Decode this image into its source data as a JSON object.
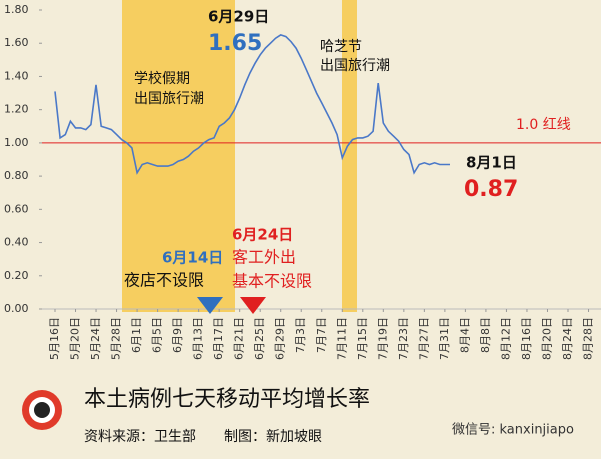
{
  "chart_data": {
    "type": "line",
    "title": "本土病例七天移动平均增长率",
    "source": "资料来源：卫生部",
    "credit": "制图：新加坡眼",
    "wechat": "微信号: kanxinjiapo",
    "x": [
      "5月16日",
      "5月17日",
      "5月18日",
      "5月19日",
      "5月20日",
      "5月21日",
      "5月22日",
      "5月23日",
      "5月24日",
      "5月25日",
      "5月26日",
      "5月27日",
      "5月28日",
      "5月29日",
      "5月30日",
      "5月31日",
      "6月1日",
      "6月2日",
      "6月3日",
      "6月4日",
      "6月5日",
      "6月6日",
      "6月7日",
      "6月8日",
      "6月9日",
      "6月10日",
      "6月11日",
      "6月12日",
      "6月13日",
      "6月14日",
      "6月15日",
      "6月16日",
      "6月17日",
      "6月18日",
      "6月19日",
      "6月20日",
      "6月21日",
      "6月22日",
      "6月23日",
      "6月24日",
      "6月25日",
      "6月26日",
      "6月27日",
      "6月28日",
      "6月29日",
      "6月30日",
      "7月1日",
      "7月2日",
      "7月3日",
      "7月4日",
      "7月5日",
      "7月6日",
      "7月7日",
      "7月8日",
      "7月9日",
      "7月10日",
      "7月11日",
      "7月12日",
      "7月13日",
      "7月14日",
      "7月15日",
      "7月16日",
      "7月17日",
      "7月18日",
      "7月19日",
      "7月20日",
      "7月21日",
      "7月22日",
      "7月23日",
      "7月24日",
      "7月25日",
      "7月26日",
      "7月27日",
      "7月28日",
      "7月29日",
      "7月30日",
      "7月31日",
      "8月1日"
    ],
    "series": [
      {
        "color": "#4a78c8",
        "values": [
          1.31,
          1.03,
          1.05,
          1.13,
          1.09,
          1.09,
          1.08,
          1.11,
          1.35,
          1.1,
          1.09,
          1.08,
          1.05,
          1.02,
          1.0,
          0.97,
          0.82,
          0.87,
          0.88,
          0.87,
          0.86,
          0.86,
          0.86,
          0.87,
          0.89,
          0.9,
          0.92,
          0.95,
          0.97,
          1.0,
          1.02,
          1.03,
          1.1,
          1.12,
          1.15,
          1.2,
          1.27,
          1.35,
          1.42,
          1.48,
          1.53,
          1.57,
          1.6,
          1.63,
          1.65,
          1.64,
          1.61,
          1.57,
          1.51,
          1.44,
          1.37,
          1.3,
          1.24,
          1.18,
          1.12,
          1.05,
          0.91,
          0.98,
          1.02,
          1.03,
          1.03,
          1.04,
          1.07,
          1.36,
          1.12,
          1.07,
          1.04,
          1.01,
          0.96,
          0.93,
          0.82,
          0.87,
          0.88,
          0.87,
          0.88,
          0.87,
          0.87,
          0.87
        ]
      }
    ],
    "ylim": [
      0,
      1.8
    ],
    "yticks": [
      {
        "value": 0,
        "label": "0.00"
      },
      {
        "value": 0.2,
        "label": "0.20"
      },
      {
        "value": 0.4,
        "label": "0.40"
      },
      {
        "value": 0.6,
        "label": "0.60"
      },
      {
        "value": 0.8,
        "label": "0.80"
      },
      {
        "value": 1.0,
        "label": "1.00"
      },
      {
        "value": 1.2,
        "label": "1.20"
      },
      {
        "value": 1.4,
        "label": "1.40"
      },
      {
        "value": 1.6,
        "label": "1.60"
      },
      {
        "value": 1.8,
        "label": "1.80"
      }
    ],
    "xticks": [
      "5月16日",
      "5月20日",
      "5月24日",
      "5月28日",
      "6月1日",
      "6月5日",
      "6月9日",
      "6月13日",
      "6月17日",
      "6月21日",
      "6月25日",
      "6月29日",
      "7月3日",
      "7月7日",
      "7月11日",
      "7月15日",
      "7月19日",
      "7月23日",
      "7月27日",
      "7月31日",
      "8月4日",
      "8月8日",
      "8月12日",
      "8月16日",
      "8月20日",
      "8月24日",
      "8月28日"
    ],
    "reference_line": {
      "value": 1.0,
      "label": "1.0 红线",
      "color": "#e02020"
    },
    "annotations": {
      "peak_date": "6月29日",
      "peak_value": "1.65",
      "school": [
        "学校假期",
        "出国旅行潮"
      ],
      "hari_raya": [
        "哈芝节",
        "出国旅行潮"
      ],
      "latest_date": "8月1日",
      "latest_value": "0.87",
      "nightlife": [
        "6月14日",
        "夜店不设限"
      ],
      "workers": [
        "6月24日",
        "客工外出",
        "基本不设限"
      ]
    }
  }
}
